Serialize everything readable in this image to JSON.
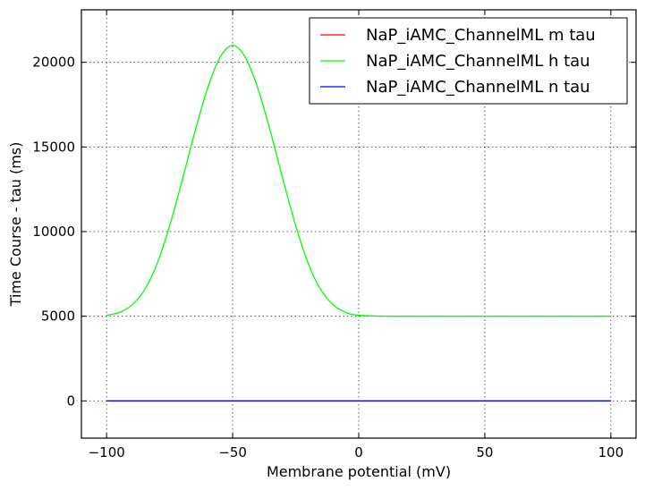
{
  "chart_data": {
    "type": "line",
    "xlabel": "Membrane potential (mV)",
    "ylabel": "Time Course - tau (ms)",
    "xlim": [
      -110,
      110
    ],
    "ylim": [
      -2200,
      23100
    ],
    "xticks": [
      -100,
      -50,
      0,
      50,
      100
    ],
    "yticks": [
      0,
      5000,
      10000,
      15000,
      20000
    ],
    "xtick_labels": [
      "−100",
      "−50",
      "0",
      "50",
      "100"
    ],
    "ytick_labels": [
      "0",
      "5000",
      "10000",
      "15000",
      "20000"
    ],
    "grid": true,
    "legend_position": "top-right",
    "series": [
      {
        "name": "NaP_iAMC_ChannelML m tau",
        "color": "#ff0000",
        "x": [
          -100,
          -75,
          -50,
          -25,
          0,
          25,
          50,
          75,
          100
        ],
        "y": [
          0,
          0,
          0,
          0,
          0,
          0,
          0,
          0,
          0
        ]
      },
      {
        "name": "NaP_iAMC_ChannelML h tau",
        "color": "#00ff00",
        "x": [
          -100,
          -95,
          -90,
          -85,
          -80,
          -75,
          -70,
          -65,
          -60,
          -55,
          -50,
          -45,
          -40,
          -35,
          -30,
          -25,
          -20,
          -15,
          -10,
          -5,
          0,
          10,
          25,
          50,
          75,
          100
        ],
        "y": [
          5060,
          5220,
          5660,
          6550,
          8100,
          10350,
          13050,
          15900,
          18450,
          20300,
          21000,
          20300,
          18450,
          15900,
          13050,
          10350,
          8100,
          6550,
          5660,
          5220,
          5060,
          5005,
          5000,
          5000,
          5000,
          5000
        ]
      },
      {
        "name": "NaP_iAMC_ChannelML n tau",
        "color": "#0000ff",
        "x": [
          -100,
          -75,
          -50,
          -25,
          0,
          25,
          50,
          75,
          100
        ],
        "y": [
          0,
          0,
          0,
          0,
          0,
          0,
          0,
          0,
          0
        ]
      }
    ]
  }
}
